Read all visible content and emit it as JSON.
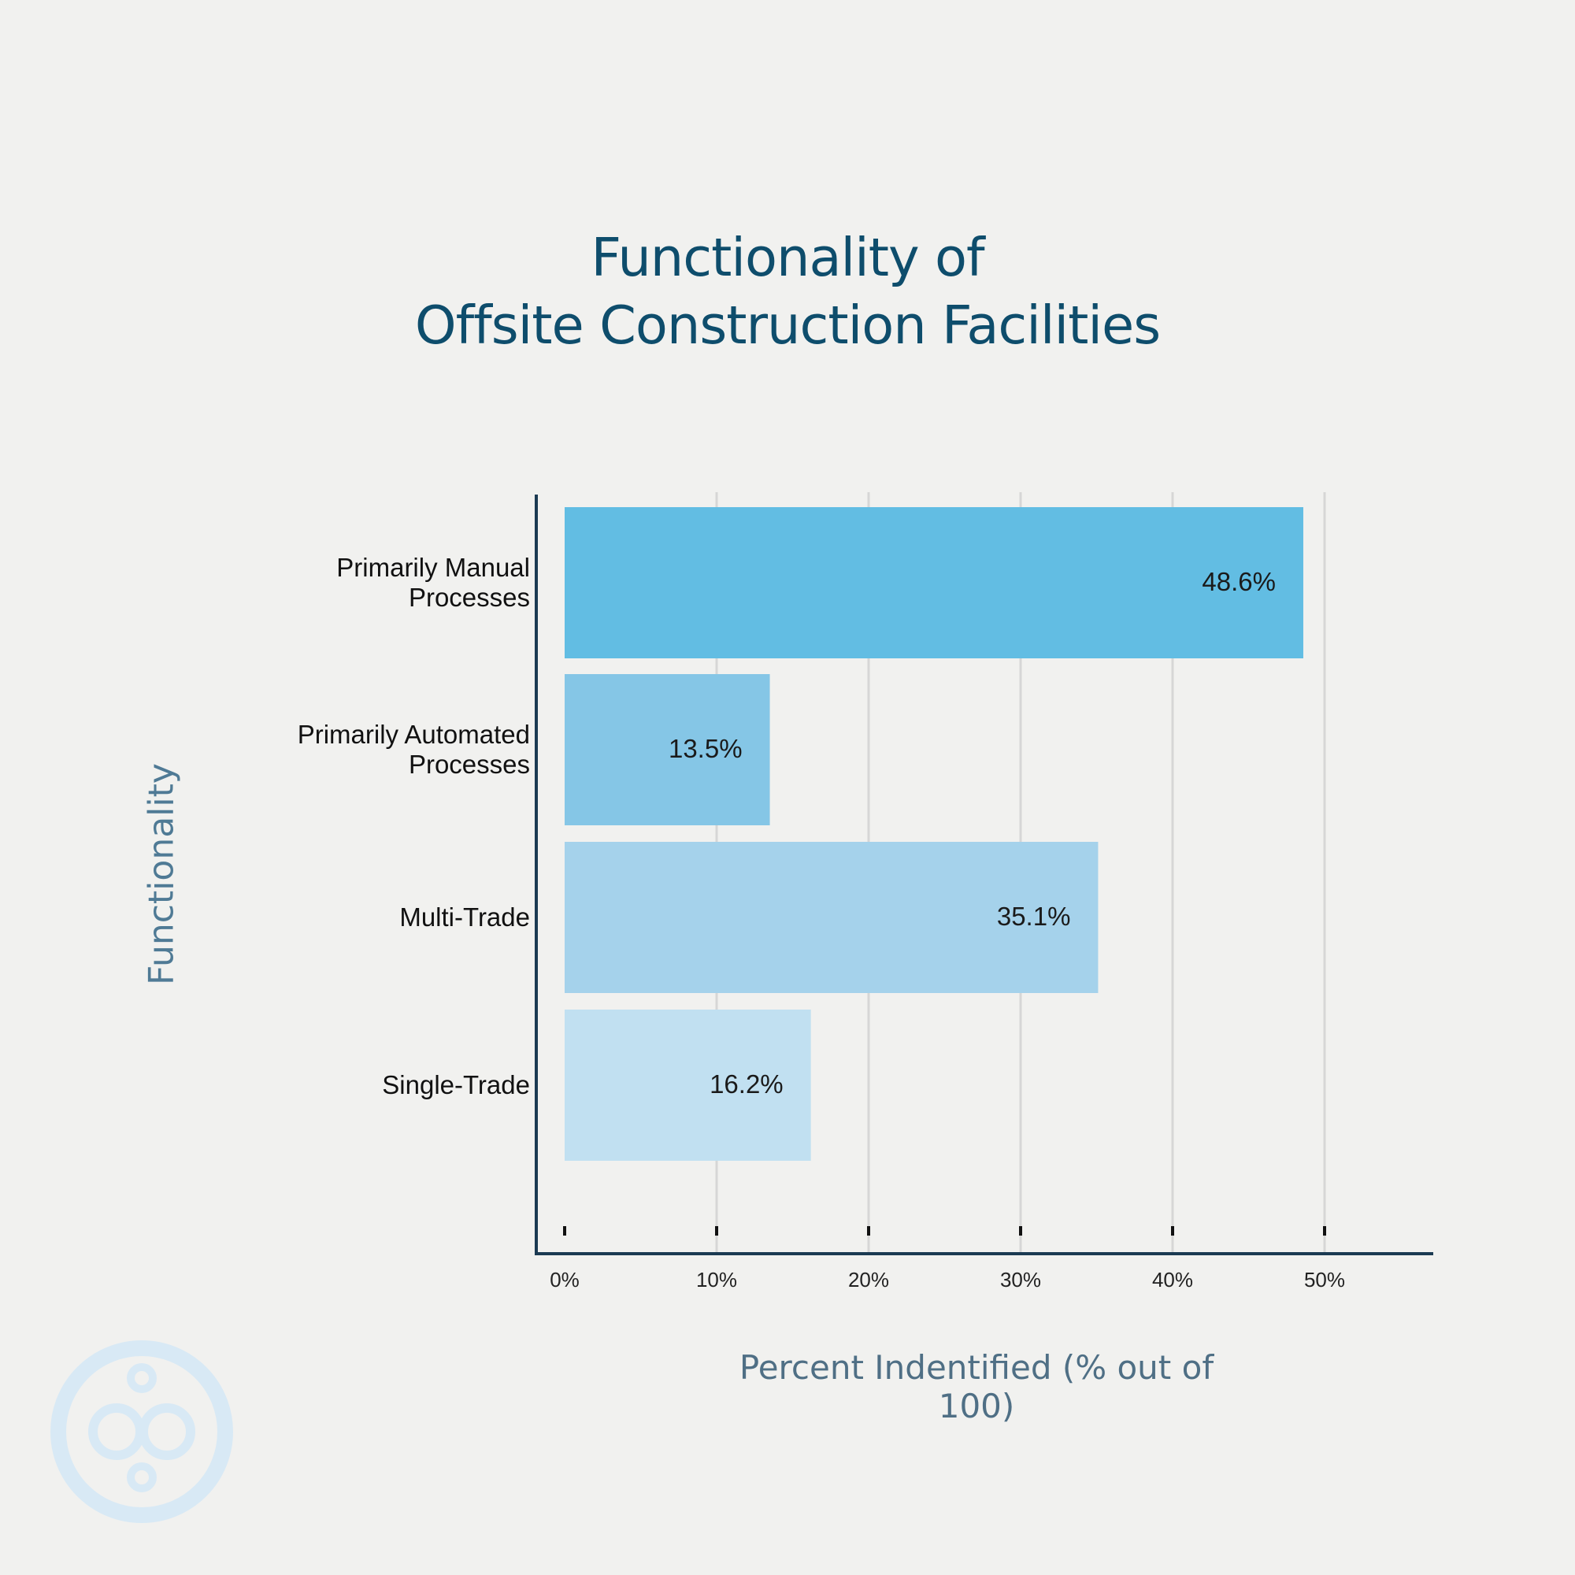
{
  "chart_data": {
    "type": "bar",
    "orientation": "horizontal",
    "title": [
      "Functionality of",
      "Offsite Construction Facilities"
    ],
    "ylabel": "Functionality",
    "xlabel": "Percent Indentified (% out of 100)",
    "categories": [
      [
        "Primarily Manual",
        "Processes"
      ],
      [
        "Primarily Automated",
        "Processes"
      ],
      [
        "Multi-Trade"
      ],
      [
        "Single-Trade"
      ]
    ],
    "values": [
      48.6,
      13.5,
      35.1,
      16.2
    ],
    "value_labels": [
      "48.6%",
      "13.5%",
      "35.1%",
      "16.2%"
    ],
    "bar_colors": [
      "#62bde3",
      "#85c6e6",
      "#a5d2eb",
      "#c1e0f1"
    ],
    "xticks": [
      0,
      10,
      20,
      30,
      40,
      50
    ],
    "xtick_labels": [
      "0%",
      "10%",
      "20%",
      "30%",
      "40%",
      "50%"
    ],
    "xlim": [
      0,
      57
    ],
    "grid": "vertical",
    "legend": "none"
  },
  "colors": {
    "title": "#0e4d6c",
    "axis": "#1b3a52",
    "grid": "#d6d6d6",
    "logo": "#d8e9f5"
  },
  "logo": {
    "icon": "circles-logo"
  }
}
